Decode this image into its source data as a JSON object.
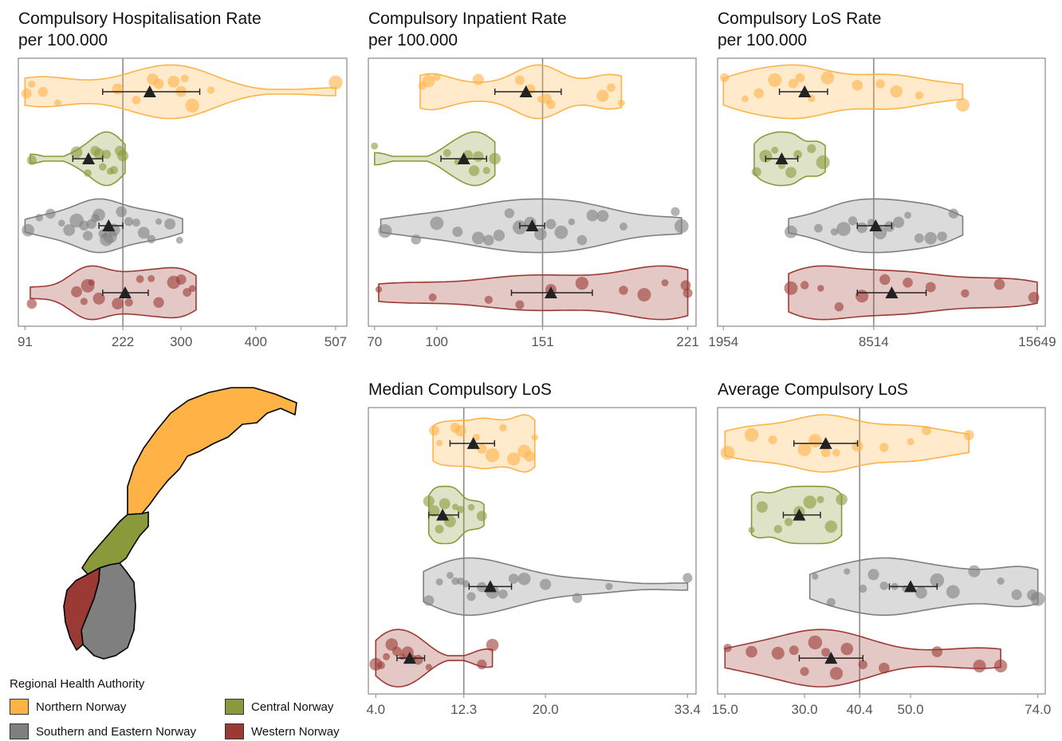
{
  "colors": {
    "Northern Norway": "#FFB347",
    "Central Norway": "#8A9A3A",
    "Southern and Eastern Norway": "#7F7F7F",
    "Western Norway": "#9B3A34"
  },
  "legend": {
    "title": "Regional Health Authority",
    "items": [
      "Northern Norway",
      "Central Norway",
      "Southern and Eastern Norway",
      "Western Norway"
    ]
  },
  "chart_data": [
    {
      "type": "violin",
      "title": [
        "Compulsory Hospitalisation Rate",
        "per 100.000"
      ],
      "xlim": [
        82,
        522
      ],
      "ticks": [
        91,
        222,
        300,
        400,
        507
      ],
      "tick_labels": [
        "91",
        "222",
        "300",
        "400",
        "507"
      ],
      "reference_line": 222,
      "series": [
        {
          "name": "Northern Norway",
          "mean": 258,
          "ci": [
            195,
            325
          ],
          "range": [
            91,
            507
          ],
          "points": [
            93,
            100,
            115,
            135,
            215,
            240,
            262,
            270,
            290,
            300,
            305,
            315,
            340,
            507
          ]
        },
        {
          "name": "Central Norway",
          "mean": 176,
          "ci": [
            155,
            195
          ],
          "range": [
            98,
            225
          ],
          "points": [
            100,
            160,
            175,
            185,
            190,
            195,
            200,
            205,
            210,
            218,
            222
          ]
        },
        {
          "name": "Southern and Eastern Norway",
          "mean": 203,
          "ci": [
            190,
            222
          ],
          "range": [
            91,
            302
          ],
          "points": [
            95,
            110,
            125,
            140,
            150,
            160,
            170,
            175,
            180,
            185,
            190,
            195,
            200,
            205,
            210,
            220,
            230,
            240,
            250,
            260,
            270,
            285,
            298
          ]
        },
        {
          "name": "Western Norway",
          "mean": 225,
          "ci": [
            195,
            256
          ],
          "range": [
            98,
            320
          ],
          "points": [
            100,
            160,
            170,
            175,
            180,
            190,
            215,
            230,
            245,
            260,
            270,
            290,
            300,
            308,
            315
          ]
        }
      ]
    },
    {
      "type": "violin",
      "title": [
        "Compulsory Inpatient Rate",
        "per 100.000"
      ],
      "xlim": [
        67,
        225
      ],
      "ticks": [
        70,
        100,
        151,
        221
      ],
      "tick_labels": [
        "70",
        "100",
        "151",
        "221"
      ],
      "reference_line": 151,
      "series": [
        {
          "name": "Northern Norway",
          "mean": 143,
          "ci": [
            128,
            160
          ],
          "range": [
            92,
            189
          ],
          "points": [
            93,
            96,
            100,
            120,
            140,
            145,
            150,
            153,
            155,
            180,
            184,
            189
          ]
        },
        {
          "name": "Central Norway",
          "mean": 113,
          "ci": [
            102,
            124
          ],
          "range": [
            70,
            128
          ],
          "points": [
            70,
            105,
            110,
            115,
            118,
            120,
            124,
            128
          ]
        },
        {
          "name": "Southern and Eastern Norway",
          "mean": 146,
          "ci": [
            140,
            152
          ],
          "range": [
            73,
            218
          ],
          "points": [
            75,
            90,
            100,
            110,
            120,
            125,
            130,
            135,
            140,
            145,
            150,
            155,
            160,
            165,
            170,
            175,
            180,
            190,
            215,
            218
          ]
        },
        {
          "name": "Western Norway",
          "mean": 155,
          "ci": [
            136,
            175
          ],
          "range": [
            72,
            221
          ],
          "points": [
            72,
            98,
            125,
            140,
            155,
            170,
            190,
            200,
            210,
            220,
            221
          ]
        }
      ]
    },
    {
      "type": "violin",
      "title": [
        "Compulsory LoS Rate",
        "per 100.000"
      ],
      "xlim": [
        1700,
        16000
      ],
      "ticks": [
        1954,
        8514,
        15649
      ],
      "tick_labels": [
        "1954",
        "8514",
        "15649"
      ],
      "reference_line": 8514,
      "series": [
        {
          "name": "Northern Norway",
          "mean": 5500,
          "ci": [
            4400,
            6500
          ],
          "range": [
            1954,
            12400
          ],
          "points": [
            2000,
            2900,
            3500,
            4200,
            5000,
            5300,
            5800,
            6500,
            7800,
            8800,
            9500,
            10500,
            12400
          ]
        },
        {
          "name": "Central Norway",
          "mean": 4500,
          "ci": [
            3800,
            5200
          ],
          "range": [
            3300,
            6400
          ],
          "points": [
            3400,
            3800,
            4200,
            4500,
            4900,
            5200,
            5800,
            6300
          ]
        },
        {
          "name": "Southern and Eastern Norway",
          "mean": 8600,
          "ci": [
            7800,
            9300
          ],
          "range": [
            4800,
            12400
          ],
          "points": [
            4900,
            6100,
            6800,
            7200,
            7600,
            8000,
            8400,
            8800,
            9200,
            9600,
            10000,
            10500,
            11000,
            11500,
            12000
          ]
        },
        {
          "name": "Western Norway",
          "mean": 9300,
          "ci": [
            7800,
            10800
          ],
          "range": [
            4800,
            15649
          ],
          "points": [
            4900,
            5500,
            6200,
            7000,
            8000,
            9000,
            10000,
            11000,
            12500,
            14000,
            15500
          ]
        }
      ]
    },
    {
      "type": "violin",
      "title": [
        "Median Compulsory LoS"
      ],
      "xlim": [
        3.3,
        34.2
      ],
      "ticks": [
        4.0,
        12.3,
        20.0,
        33.4
      ],
      "tick_labels": [
        "4.0",
        "12.3",
        "20.0",
        "33.4"
      ],
      "reference_line": 12.3,
      "series": [
        {
          "name": "Northern Norway",
          "mean": 13.2,
          "ci": [
            11.0,
            15.2
          ],
          "range": [
            9.4,
            19.0
          ],
          "points": [
            9.5,
            10.0,
            11.5,
            12.0,
            13.5,
            14.0,
            15.0,
            16.0,
            17.0,
            18.0,
            18.5,
            19.0
          ]
        },
        {
          "name": "Central Norway",
          "mean": 10.3,
          "ci": [
            9.0,
            11.8
          ],
          "range": [
            9.0,
            14.2
          ],
          "points": [
            9.0,
            9.5,
            10.0,
            10.5,
            11.0,
            11.5,
            12.0,
            13.0,
            14.0
          ]
        },
        {
          "name": "Southern and Eastern Norway",
          "mean": 14.8,
          "ci": [
            12.8,
            16.8
          ],
          "range": [
            8.5,
            33.4
          ],
          "points": [
            9.0,
            10.0,
            11.0,
            11.5,
            12.0,
            12.5,
            13.0,
            14.0,
            15.0,
            16.0,
            17.0,
            18.0,
            20.0,
            23.0,
            26.0,
            33.4
          ]
        },
        {
          "name": "Western Norway",
          "mean": 7.2,
          "ci": [
            6.0,
            8.6
          ],
          "range": [
            4.0,
            15.0
          ],
          "points": [
            4.0,
            4.5,
            5.0,
            5.5,
            6.0,
            6.5,
            7.0,
            7.5,
            8.0,
            9.0,
            14.0,
            15.0
          ]
        }
      ]
    },
    {
      "type": "violin",
      "title": [
        "Average Compulsory LoS"
      ],
      "xlim": [
        13.6,
        75.4
      ],
      "ticks": [
        15.0,
        30.0,
        40.4,
        50.0,
        74.0
      ],
      "tick_labels": [
        "15.0",
        "30.0",
        "40.4",
        "50.0",
        "74.0"
      ],
      "reference_line": 40.4,
      "series": [
        {
          "name": "Northern Norway",
          "mean": 34.0,
          "ci": [
            28.0,
            40.0
          ],
          "range": [
            15.0,
            61.0
          ],
          "points": [
            15.5,
            20.0,
            24.0,
            30.0,
            32.0,
            34.0,
            36.0,
            40.0,
            45.0,
            50.0,
            53.0,
            61.0
          ]
        },
        {
          "name": "Central Norway",
          "mean": 29.0,
          "ci": [
            26.0,
            33.0
          ],
          "range": [
            20.0,
            37.0
          ],
          "points": [
            20.0,
            22.0,
            25.0,
            27.0,
            29.0,
            31.0,
            33.0,
            35.0,
            37.0
          ]
        },
        {
          "name": "Southern and Eastern Norway",
          "mean": 50.0,
          "ci": [
            46.0,
            55.0
          ],
          "range": [
            31.0,
            74.0
          ],
          "points": [
            32.0,
            35.0,
            38.0,
            41.0,
            43.0,
            45.0,
            47.0,
            49.0,
            52.0,
            55.0,
            58.0,
            62.0,
            67.0,
            70.0,
            73.0,
            74.0
          ]
        },
        {
          "name": "Western Norway",
          "mean": 35.0,
          "ci": [
            29.0,
            41.0
          ],
          "range": [
            15.0,
            67.0
          ],
          "points": [
            15.5,
            20.0,
            25.0,
            28.0,
            30.0,
            32.0,
            34.0,
            36.0,
            38.0,
            41.0,
            45.0,
            55.0,
            63.0,
            67.0
          ]
        }
      ]
    }
  ]
}
